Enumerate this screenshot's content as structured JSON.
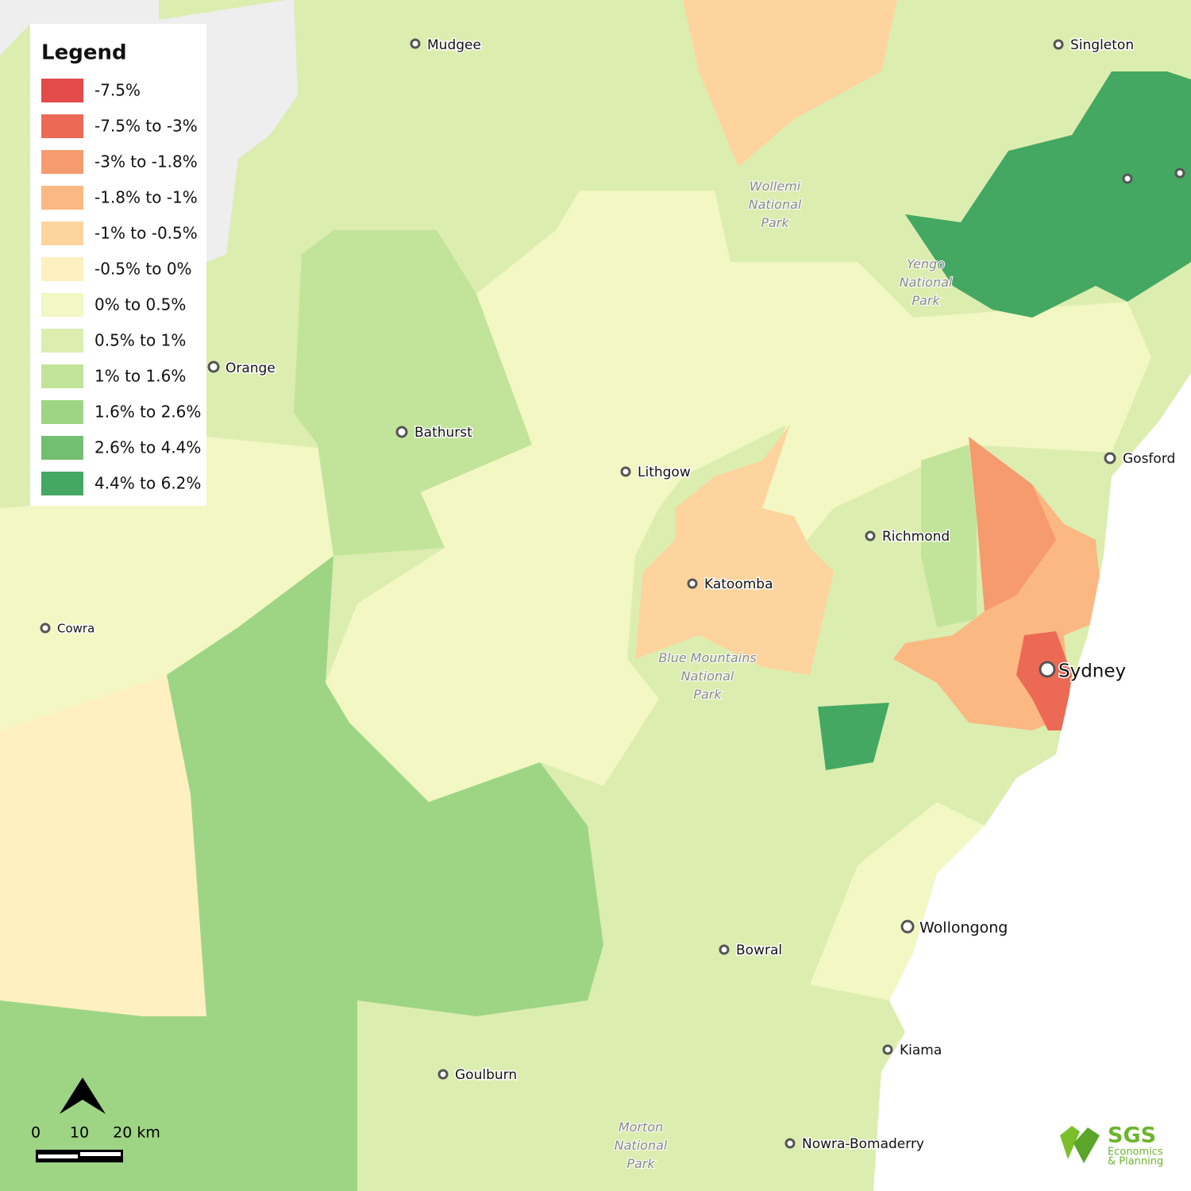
{
  "legend": {
    "title": "Legend",
    "items": [
      {
        "label": "-7.5%",
        "color": "#e34a4a"
      },
      {
        "label": "-7.5% to -3%",
        "color": "#ec6a55"
      },
      {
        "label": "-3% to -1.8%",
        "color": "#f59b6e"
      },
      {
        "label": "-1.8% to -1%",
        "color": "#fbb882"
      },
      {
        "label": "-1% to -0.5%",
        "color": "#fdd49e"
      },
      {
        "label": "-0.5% to 0%",
        "color": "#fef0c0"
      },
      {
        "label": "0% to 0.5%",
        "color": "#f2f7c4"
      },
      {
        "label": "0.5% to 1%",
        "color": "#dcedb0"
      },
      {
        "label": "1% to 1.6%",
        "color": "#c2e49a"
      },
      {
        "label": "1.6% to 2.6%",
        "color": "#9ed585"
      },
      {
        "label": "2.6% to 4.4%",
        "color": "#72bf72"
      },
      {
        "label": "4.4% to 6.2%",
        "color": "#44a862"
      }
    ]
  },
  "places": [
    "Mudgee",
    "Singleton",
    "Orange",
    "Bathurst",
    "Lithgow",
    "Gosford",
    "Richmond",
    "Katoomba",
    "Cowra",
    "Sydney",
    "Wollongong",
    "Bowral",
    "Kiama",
    "Goulburn",
    "Nowra-Bomaderry"
  ],
  "parks": [
    [
      "Wollemi",
      "National",
      "Park"
    ],
    [
      "Yengo",
      "National",
      "Park"
    ],
    [
      "Blue Mountains",
      "National",
      "Park"
    ],
    [
      "Morton",
      "National",
      "Park"
    ]
  ],
  "scale_bar": [
    "0",
    "10",
    "20 km"
  ],
  "logo": {
    "name": "SGS",
    "tagline": [
      "Economics",
      "& Planning"
    ]
  }
}
